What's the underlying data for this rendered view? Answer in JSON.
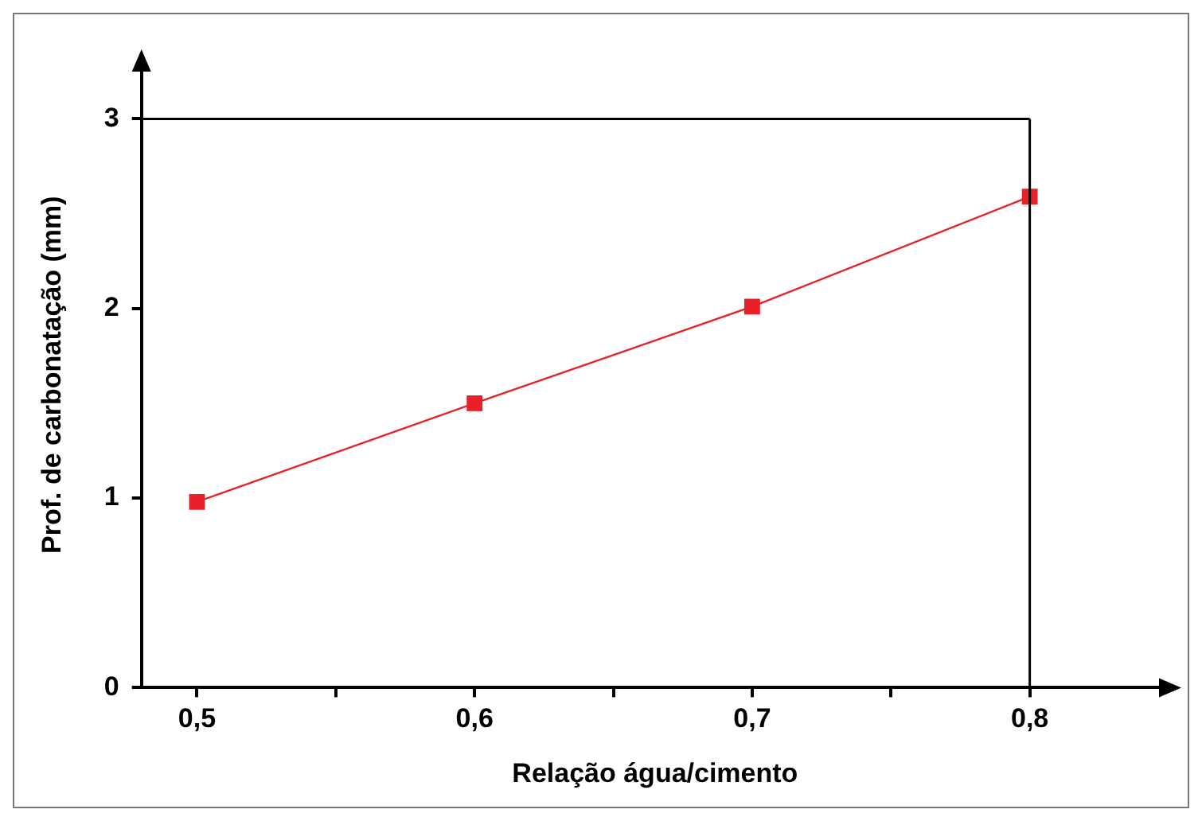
{
  "chart_data": {
    "type": "line",
    "xlabel": "Relação água/cimento",
    "ylabel": "Prof. de carbonatação (mm)",
    "x": [
      0.5,
      0.6,
      0.7,
      0.8
    ],
    "series": [
      {
        "color": "#e8202a",
        "values": [
          0.98,
          1.5,
          2.01,
          2.59
        ]
      }
    ],
    "xlim": [
      0.48,
      0.85
    ],
    "ylim": [
      0,
      3.3
    ],
    "xticks": [
      {
        "value": 0.5,
        "label": "0,5"
      },
      {
        "value": 0.55,
        "label": null
      },
      {
        "value": 0.6,
        "label": "0,6"
      },
      {
        "value": 0.65,
        "label": null
      },
      {
        "value": 0.7,
        "label": "0,7"
      },
      {
        "value": 0.75,
        "label": null
      },
      {
        "value": 0.8,
        "label": "0,8"
      }
    ],
    "yticks": [
      0,
      1,
      2,
      3
    ],
    "ref_lines": [
      {
        "axis": "y",
        "value": 3,
        "color": "#000000"
      },
      {
        "axis": "x",
        "value": 0.8,
        "color": "#000000"
      }
    ],
    "grid": false,
    "legend": false,
    "marker": "square",
    "line_style": "solid"
  }
}
